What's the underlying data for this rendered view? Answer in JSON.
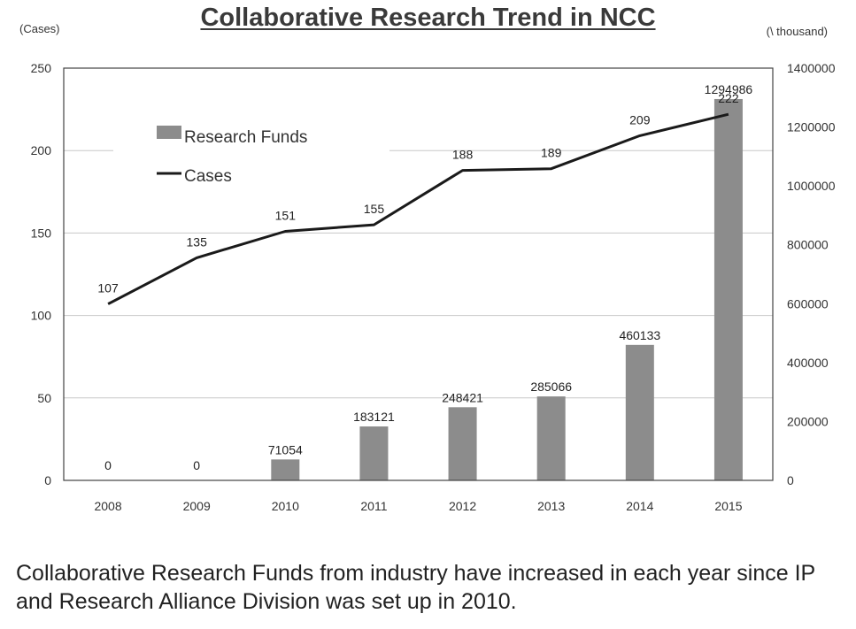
{
  "chart_data": {
    "type": "bar",
    "title": "Collaborative Research Trend in NCC",
    "categories": [
      "2008",
      "2009",
      "2010",
      "2011",
      "2012",
      "2013",
      "2014",
      "2015"
    ],
    "left_axis_unit": "(Cases)",
    "right_axis_unit": "(\\ thousand)",
    "ylim_left": [
      0,
      250
    ],
    "yticks_left": [
      "0",
      "50",
      "100",
      "150",
      "200",
      "250"
    ],
    "ylim_right": [
      0,
      1400000
    ],
    "yticks_right": [
      "0",
      "200000",
      "400000",
      "600000",
      "800000",
      "1000000",
      "1200000",
      "1400000"
    ],
    "series": [
      {
        "name": "Research Funds",
        "type": "bar",
        "axis": "right",
        "color": "#8c8c8c",
        "values": [
          0,
          0,
          71054,
          183121,
          248421,
          285066,
          460133,
          1294986
        ],
        "labels": [
          "0",
          "0",
          "71054",
          "183121",
          "248421",
          "285066",
          "460133",
          "1294986"
        ]
      },
      {
        "name": "Cases",
        "type": "line",
        "axis": "left",
        "color": "#1a1a1a",
        "values": [
          107,
          135,
          151,
          155,
          188,
          189,
          209,
          222
        ],
        "labels": [
          "107",
          "135",
          "151",
          "155",
          "188",
          "189",
          "209",
          "222"
        ]
      }
    ],
    "grid": true,
    "legend_position": "top-left"
  },
  "caption": "Collaborative Research Funds from industry have increased in each year since IP and Research Alliance Division was set up in 2010."
}
